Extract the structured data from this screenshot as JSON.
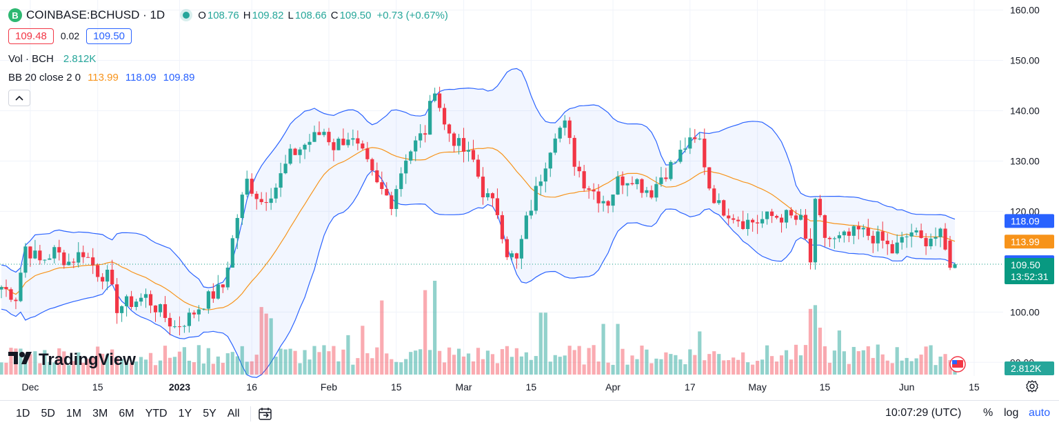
{
  "header": {
    "symbol": "COINBASE:BCHUSD · 1D",
    "logo_letter": "B",
    "open_label": "O",
    "open": "108.76",
    "high_label": "H",
    "high": "109.82",
    "low_label": "L",
    "low": "108.66",
    "close_label": "C",
    "close": "109.50",
    "change": "+0.73 (+0.67%)"
  },
  "prices": {
    "bid": "109.48",
    "spread": "0.02",
    "ask": "109.50"
  },
  "indicators": {
    "vol_label": "Vol · BCH",
    "vol_value": "2.812K",
    "bb_label": "BB 20 close 2 0",
    "bb_basis": "113.99",
    "bb_upper": "118.09",
    "bb_lower": "109.89"
  },
  "collapse_icon": "chevron-up-icon",
  "brand": "TradingView",
  "bottom": {
    "ranges": [
      "1D",
      "5D",
      "1M",
      "3M",
      "6M",
      "YTD",
      "1Y",
      "5Y",
      "All"
    ],
    "time": "10:07:29 (UTC)",
    "percent": "%",
    "log": "log",
    "auto": "auto"
  },
  "colors": {
    "up": "#26a69a",
    "down": "#f23645",
    "basis": "#f7931a",
    "band": "#2962ff",
    "last": "#089981"
  },
  "chart_data": {
    "type": "candlestick",
    "y_ticks": [
      "160.00",
      "150.00",
      "140.00",
      "130.00",
      "120.00",
      "100.00",
      "90.00"
    ],
    "y_tick_values": [
      160,
      150,
      140,
      130,
      120,
      100,
      90
    ],
    "ylim": [
      82.5,
      162
    ],
    "x_ticks": [
      {
        "label": "Dec",
        "bold": false,
        "i": 6
      },
      {
        "label": "15",
        "bold": false,
        "i": 20
      },
      {
        "label": "2023",
        "bold": true,
        "i": 37
      },
      {
        "label": "16",
        "bold": false,
        "i": 52
      },
      {
        "label": "Feb",
        "bold": false,
        "i": 68
      },
      {
        "label": "15",
        "bold": false,
        "i": 82
      },
      {
        "label": "Mar",
        "bold": false,
        "i": 96
      },
      {
        "label": "15",
        "bold": false,
        "i": 110
      },
      {
        "label": "Apr",
        "bold": false,
        "i": 127
      },
      {
        "label": "17",
        "bold": false,
        "i": 143
      },
      {
        "label": "May",
        "bold": false,
        "i": 157
      },
      {
        "label": "15",
        "bold": false,
        "i": 171
      },
      {
        "label": "Jun",
        "bold": false,
        "i": 188
      },
      {
        "label": "15",
        "bold": false,
        "i": 202
      }
    ],
    "axis_labels": [
      {
        "text": "118.09",
        "value": 118.09,
        "color": "#2962ff"
      },
      {
        "text": "113.99",
        "value": 113.99,
        "color": "#f7931a"
      },
      {
        "text": "109.89",
        "value": 109.89,
        "color": "#2962ff"
      },
      {
        "text": "109.50",
        "text2": "13:52:31",
        "value": 109.5,
        "color": "#089981"
      }
    ],
    "volume_label": "2.812K",
    "anchors": [
      [
        0,
        105
      ],
      [
        3,
        103
      ],
      [
        5,
        113
      ],
      [
        8,
        110
      ],
      [
        11,
        112
      ],
      [
        14,
        110
      ],
      [
        17,
        112
      ],
      [
        20,
        108
      ],
      [
        22,
        107
      ],
      [
        24,
        101
      ],
      [
        27,
        102
      ],
      [
        30,
        103
      ],
      [
        33,
        100
      ],
      [
        36,
        97
      ],
      [
        39,
        99
      ],
      [
        42,
        102
      ],
      [
        46,
        105
      ],
      [
        49,
        119
      ],
      [
        51,
        126
      ],
      [
        54,
        122
      ],
      [
        57,
        125
      ],
      [
        60,
        131
      ],
      [
        64,
        134
      ],
      [
        67,
        136
      ],
      [
        69,
        133
      ],
      [
        72,
        135
      ],
      [
        75,
        131
      ],
      [
        78,
        125
      ],
      [
        81,
        122
      ],
      [
        84,
        131
      ],
      [
        88,
        136
      ],
      [
        90,
        145
      ],
      [
        92,
        137
      ],
      [
        95,
        133
      ],
      [
        98,
        130
      ],
      [
        100,
        124
      ],
      [
        103,
        120
      ],
      [
        105,
        112
      ],
      [
        107,
        110
      ],
      [
        109,
        118
      ],
      [
        111,
        124
      ],
      [
        113,
        130
      ],
      [
        115,
        136
      ],
      [
        117,
        137
      ],
      [
        119,
        130
      ],
      [
        121,
        126
      ],
      [
        124,
        123
      ],
      [
        126,
        122
      ],
      [
        128,
        126
      ],
      [
        131,
        127
      ],
      [
        133,
        125
      ],
      [
        135,
        124
      ],
      [
        137,
        127
      ],
      [
        140,
        130
      ],
      [
        142,
        133
      ],
      [
        145,
        134
      ],
      [
        147,
        125
      ],
      [
        149,
        121
      ],
      [
        151,
        120
      ],
      [
        154,
        118
      ],
      [
        157,
        118
      ],
      [
        160,
        119
      ],
      [
        163,
        119
      ],
      [
        166,
        118
      ],
      [
        168,
        110
      ],
      [
        169,
        121
      ],
      [
        171,
        115
      ],
      [
        173,
        114
      ],
      [
        176,
        115
      ],
      [
        178,
        116
      ],
      [
        181,
        115
      ],
      [
        183,
        114
      ],
      [
        185,
        112
      ],
      [
        187,
        114
      ],
      [
        189,
        116
      ],
      [
        191,
        114
      ],
      [
        193,
        115
      ],
      [
        194,
        115
      ],
      [
        195,
        115
      ],
      [
        197,
        108.8
      ],
      [
        198,
        109.5
      ]
    ],
    "volume_spikes": {
      "72": 0.42,
      "75": 0.52,
      "79": 0.79,
      "88": 0.9,
      "90": 1.0,
      "54": 0.72,
      "55": 0.65,
      "56": 0.6,
      "112": 0.66,
      "113": 0.66,
      "125": 0.54,
      "128": 0.54,
      "145": 0.46,
      "168": 0.7,
      "169": 0.74,
      "170": 0.5,
      "174": 0.47,
      "182": 0.32
    }
  }
}
